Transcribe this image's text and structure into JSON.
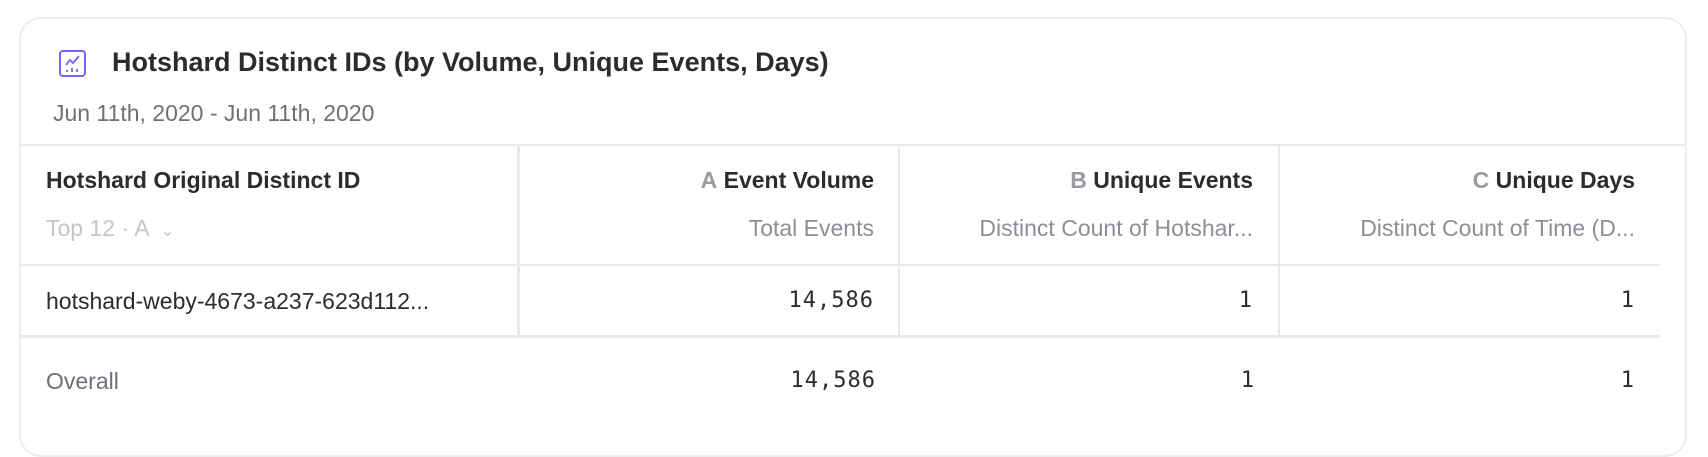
{
  "card": {
    "icon": "line-chart-icon",
    "accent": "#7b61ff",
    "title": "Hotshard Distinct IDs (by Volume, Unique Events, Days)",
    "date_range": "Jun 11th, 2020 - Jun 11th, 2020"
  },
  "table": {
    "group_column": {
      "label": "Hotshard Original Distinct ID",
      "sort": "Top 12 · A"
    },
    "columns": [
      {
        "letter": "A",
        "label": "Event Volume",
        "sub": "Total Events"
      },
      {
        "letter": "B",
        "label": "Unique Events",
        "sub": "Distinct Count of Hotshar..."
      },
      {
        "letter": "C",
        "label": "Unique Days",
        "sub": "Distinct Count of Time (D..."
      }
    ],
    "rows": [
      {
        "id": "hotshard-weby-4673-a237-623d112...",
        "values": [
          "14,586",
          "1",
          "1"
        ]
      }
    ],
    "overall": {
      "label": "Overall",
      "values": [
        "14,586",
        "1",
        "1"
      ]
    }
  }
}
